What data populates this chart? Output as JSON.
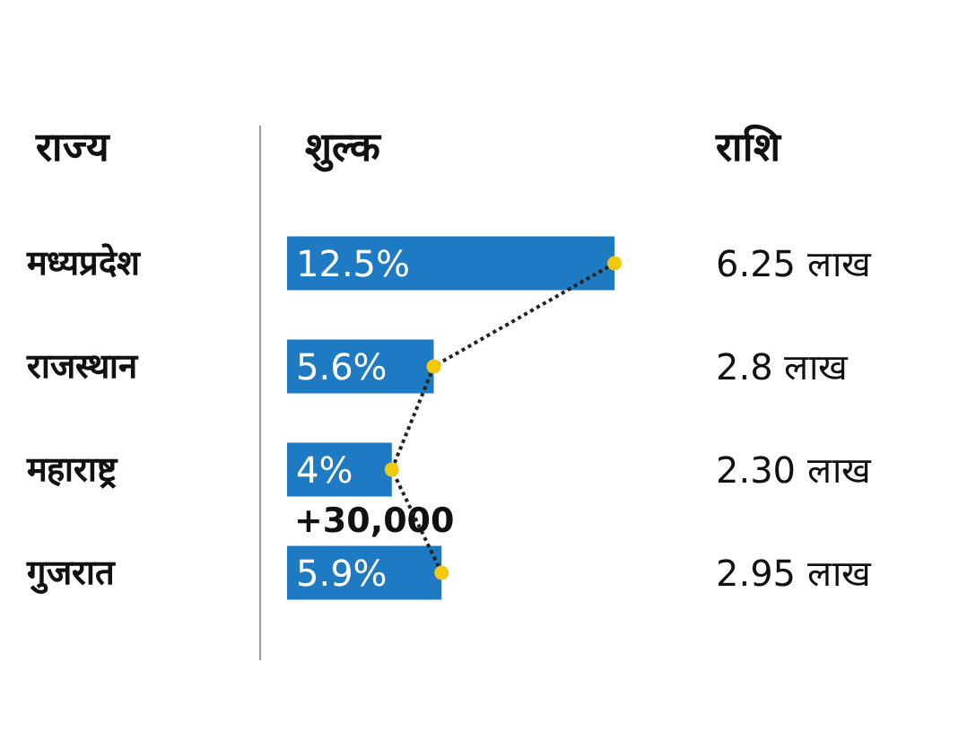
{
  "chart_data": {
    "type": "bar",
    "orientation": "horizontal",
    "xlabel": "शुल्क",
    "ylabel": "राज्य",
    "categories": [
      "मध्यप्रदेश",
      "राजस्थान",
      "महाराष्ट्र",
      "गुजरात"
    ],
    "series": [
      {
        "color": "#1f7ac4",
        "values": [
          12.5,
          5.6,
          4,
          5.9
        ],
        "value_labels": [
          "12.5%",
          "5.6%",
          "4%",
          "5.9%"
        ]
      },
      {
        "type": "line",
        "color": "#f2c80f",
        "values": [
          12.5,
          5.6,
          4,
          5.9
        ],
        "line_style": "dotted",
        "marker": "circle"
      }
    ],
    "annotations": [
      "राशि",
      "6.25 लाख",
      "2.8 लाख",
      "2.30 लाख",
      "2.95 लाख",
      {
        "text": "+30,000",
        "x": 0,
        "y": "महाराष्ट्र"
      }
    ]
  }
}
